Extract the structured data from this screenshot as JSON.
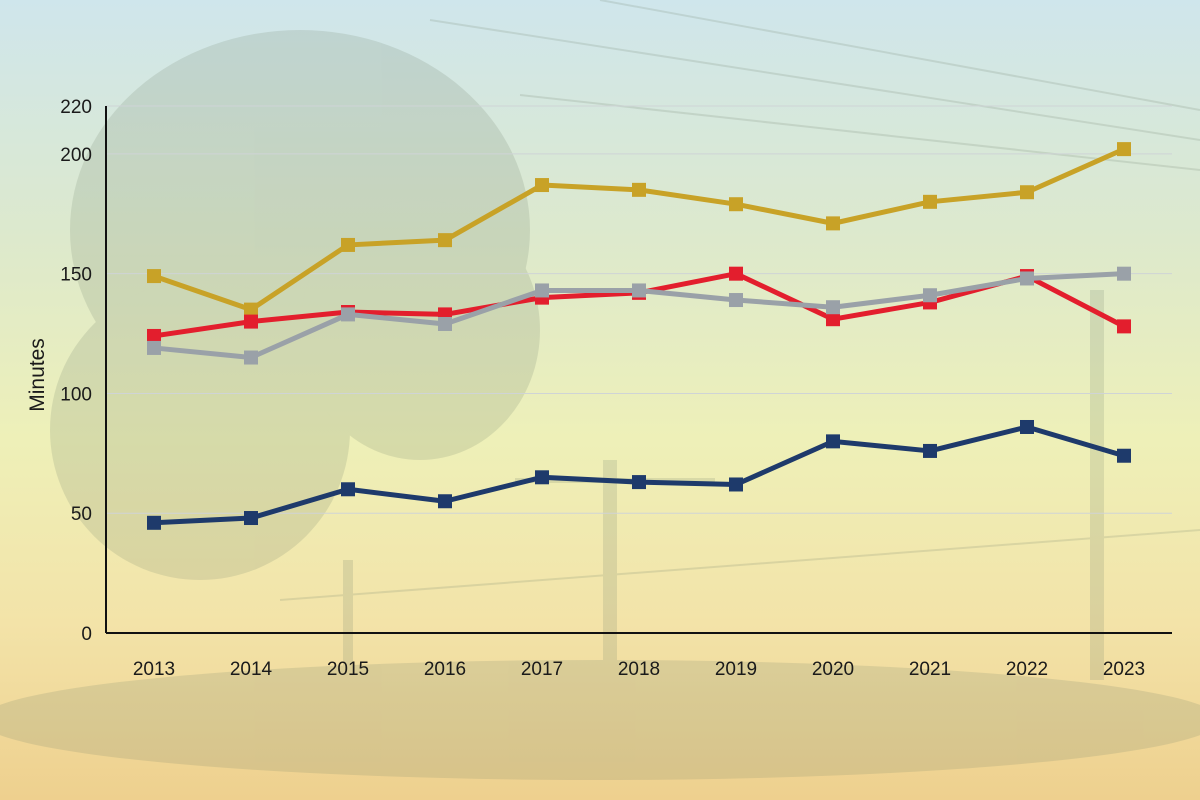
{
  "chart_data": {
    "type": "line",
    "title": "",
    "xlabel": "",
    "ylabel": "Minutes",
    "ylim": [
      0,
      220
    ],
    "yticks": [
      0,
      50,
      100,
      150,
      200,
      220
    ],
    "grid": true,
    "categories": [
      "2013",
      "2014",
      "2015",
      "2016",
      "2017",
      "2018",
      "2019",
      "2020",
      "2021",
      "2022",
      "2023"
    ],
    "series": [
      {
        "color": "#c8a227",
        "values": [
          149,
          135,
          162,
          164,
          187,
          185,
          179,
          171,
          180,
          184,
          202
        ]
      },
      {
        "color": "#e31e2d",
        "values": [
          124,
          130,
          134,
          133,
          140,
          142,
          150,
          131,
          138,
          149,
          128
        ]
      },
      {
        "color": "#9aa1a8",
        "values": [
          119,
          115,
          133,
          129,
          143,
          143,
          139,
          136,
          141,
          148,
          150
        ]
      },
      {
        "color": "#1e3a6b",
        "values": [
          46,
          48,
          60,
          55,
          65,
          63,
          62,
          80,
          76,
          86,
          74
        ]
      }
    ]
  }
}
